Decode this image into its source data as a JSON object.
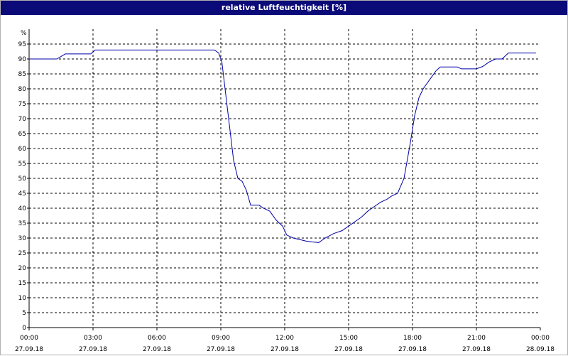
{
  "window": {
    "title": "relative Luftfeuchtigkeit [%]"
  },
  "colors": {
    "title_bar": "#0a0a78",
    "series": "#0000aa",
    "grid": "#000000",
    "background": "#ffffff"
  },
  "chart_data": {
    "type": "line",
    "title": "relative Luftfeuchtigkeit [%]",
    "ylabel": "%",
    "xlabel": "",
    "ylim": [
      0,
      100
    ],
    "xlim": [
      0,
      24
    ],
    "grid": true,
    "legend": "none",
    "y_ticks": [
      0,
      5,
      10,
      15,
      20,
      25,
      30,
      35,
      40,
      45,
      50,
      55,
      60,
      65,
      70,
      75,
      80,
      85,
      90,
      95
    ],
    "x_ticks": [
      {
        "time": "00:00",
        "date": "27.09.18",
        "hour": 0
      },
      {
        "time": "03:00",
        "date": "27.09.18",
        "hour": 3
      },
      {
        "time": "06:00",
        "date": "27.09.18",
        "hour": 6
      },
      {
        "time": "09:00",
        "date": "27.09.18",
        "hour": 9
      },
      {
        "time": "12:00",
        "date": "27.09.18",
        "hour": 12
      },
      {
        "time": "15:00",
        "date": "27.09.18",
        "hour": 15
      },
      {
        "time": "18:00",
        "date": "27.09.18",
        "hour": 18
      },
      {
        "time": "21:00",
        "date": "27.09.18",
        "hour": 21
      },
      {
        "time": "00:00",
        "date": "28.09.18",
        "hour": 24
      }
    ],
    "series": [
      {
        "x": [
          0,
          1.3,
          1.7,
          2.9,
          3.1,
          3.3,
          8.7,
          8.9,
          9.05,
          9.2,
          9.4,
          9.6,
          9.8,
          10.0,
          10.2,
          10.4,
          10.6,
          10.8,
          11.0,
          11.3,
          11.6,
          11.9,
          12.1,
          12.4,
          12.7,
          13.0,
          13.3,
          13.6,
          13.9,
          14.3,
          14.7,
          15.0,
          15.3,
          15.6,
          15.9,
          16.2,
          16.5,
          16.8,
          17.0,
          17.3,
          17.6,
          17.9,
          18.1,
          18.3,
          18.5,
          18.7,
          18.9,
          19.1,
          19.3,
          19.5,
          19.7,
          19.9,
          20.1,
          20.3,
          20.5,
          20.7,
          21.0,
          21.3,
          21.6,
          21.9,
          22.2,
          22.5,
          22.8,
          23.0,
          23.2,
          23.4,
          23.6,
          23.8
        ],
        "y": [
          90,
          90,
          91.7,
          91.7,
          93,
          93,
          93,
          92,
          89,
          80,
          68,
          56,
          50,
          49,
          46,
          41,
          41,
          41,
          40,
          39,
          36,
          34,
          31,
          30,
          29.5,
          29,
          28.7,
          28.5,
          30,
          31.5,
          32.5,
          34,
          35.5,
          37,
          39,
          40.5,
          42,
          43,
          44,
          45,
          50,
          62,
          71,
          77,
          80,
          82,
          84,
          86,
          87.3,
          87.3,
          87.3,
          87.3,
          87.3,
          86.7,
          86.7,
          86.7,
          86.7,
          87.5,
          89,
          90,
          90,
          92,
          92,
          92,
          92,
          92,
          92,
          92
        ]
      }
    ]
  }
}
